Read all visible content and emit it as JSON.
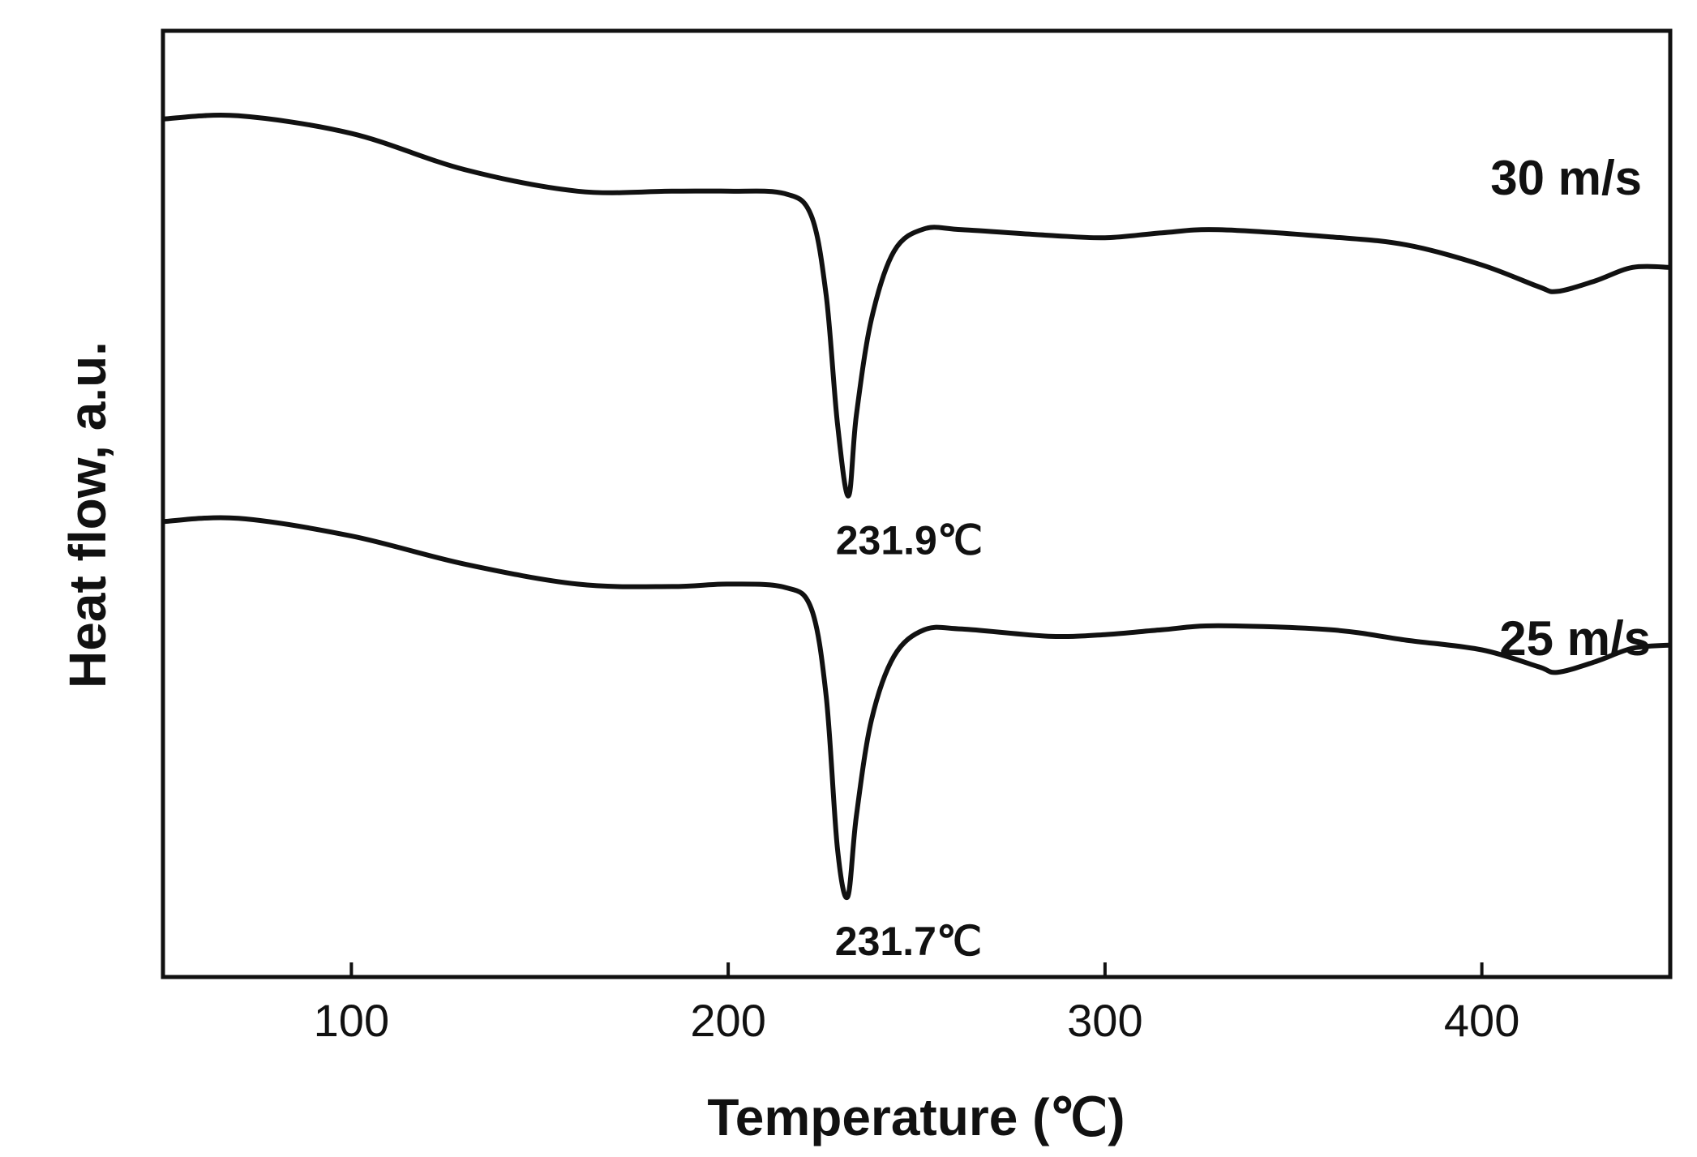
{
  "chart_data": {
    "type": "line",
    "xlabel": "Temperature (℃)",
    "ylabel": "Heat flow, a.u.",
    "xlim": [
      50,
      450
    ],
    "xticks": [
      100,
      200,
      300,
      400
    ],
    "grid": false,
    "y_ticks_shown": false,
    "series": [
      {
        "name": "30 m/s",
        "color": "#111111",
        "x": [
          50,
          70,
          100,
          130,
          160,
          185,
          200,
          215,
          222,
          226,
          229,
          231.9,
          234,
          238,
          244,
          252,
          262,
          285,
          300,
          315,
          330,
          360,
          380,
          400,
          415,
          420,
          430,
          440,
          450
        ],
        "y": [
          0.89,
          0.894,
          0.872,
          0.827,
          0.8,
          0.8,
          0.8,
          0.797,
          0.77,
          0.67,
          0.51,
          0.42,
          0.52,
          0.64,
          0.725,
          0.753,
          0.752,
          0.745,
          0.742,
          0.748,
          0.752,
          0.743,
          0.733,
          0.708,
          0.681,
          0.675,
          0.688,
          0.705,
          0.705
        ]
      },
      {
        "name": "25 m/s",
        "color": "#111111",
        "x": [
          50,
          70,
          100,
          130,
          160,
          185,
          200,
          215,
          222,
          226,
          229,
          231.7,
          234,
          238,
          244,
          252,
          262,
          285,
          300,
          315,
          330,
          360,
          380,
          400,
          415,
          420,
          430,
          440,
          450
        ],
        "y": [
          0.388,
          0.392,
          0.37,
          0.335,
          0.31,
          0.307,
          0.31,
          0.306,
          0.28,
          0.17,
          -0.02,
          -0.08,
          0.02,
          0.14,
          0.22,
          0.253,
          0.254,
          0.245,
          0.247,
          0.253,
          0.258,
          0.253,
          0.24,
          0.228,
          0.207,
          0.2,
          0.213,
          0.23,
          0.234
        ]
      }
    ],
    "annotations": [
      {
        "text": "231.9℃",
        "x": 231.9,
        "y": 0.42,
        "series": "30 m/s"
      },
      {
        "text": "231.7℃",
        "x": 231.7,
        "y": -0.08,
        "series": "25 m/s"
      }
    ]
  }
}
